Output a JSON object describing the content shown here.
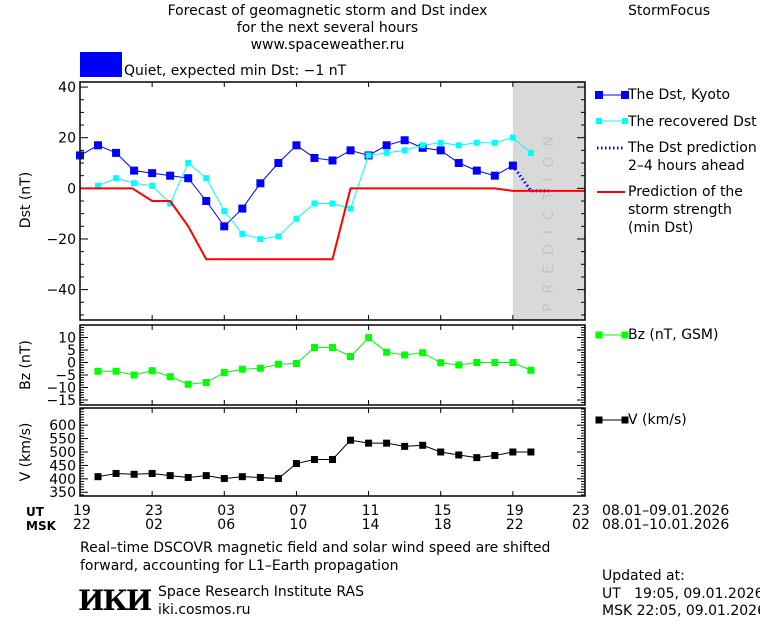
{
  "header": {
    "title_line1": "Forecast of geomagnetic storm and Dst index",
    "title_line2": "for the next several hours",
    "site": "www.spaceweather.ru",
    "brand": "StormFocus",
    "status_color": "#0000ff",
    "status_text": "Quiet, expected min Dst: −1 nT"
  },
  "legend": {
    "dst_kyoto": "The Dst, Kyoto",
    "recovered": "The recovered Dst",
    "prediction_1": "The Dst prediction",
    "prediction_2": "2–4 hours ahead",
    "strength_1": "Prediction of the",
    "strength_2": "storm strength",
    "strength_3": "(min Dst)",
    "bz": "Bz (nT, GSM)",
    "v": "V (km/s)"
  },
  "time_axis": {
    "ut_label": "UT",
    "msk_label": "MSK",
    "ut_ticks": [
      "19",
      "23",
      "03",
      "07",
      "11",
      "15",
      "19",
      "23"
    ],
    "msk_ticks": [
      "22",
      "02",
      "06",
      "10",
      "14",
      "18",
      "22",
      "02"
    ],
    "ut_range": "08.01–09.01.2026",
    "msk_range": "08.01–10.01.2026"
  },
  "footer": {
    "note_1": "Real–time DSCOVR magnetic field and solar wind speed are shifted",
    "note_2": "forward, accounting for L1–Earth propagation",
    "logo": "ИКИ",
    "institute": "Space Research Institute RAS",
    "institute_url": "iki.cosmos.ru",
    "updated_label": "Updated at:",
    "updated_ut": "UT   19:05, 09.01.2026",
    "updated_msk": "MSK 22:05, 09.01.2026"
  },
  "chart_data": [
    {
      "type": "line",
      "name": "dst",
      "ylabel": "Dst (nT)",
      "ylim": [
        -52,
        42
      ],
      "yticks": [
        40,
        20,
        0,
        -20,
        -40
      ],
      "xlim_hours": [
        0,
        28
      ],
      "prediction_zone_label": "PREDICTION",
      "prediction_zone_hours": [
        24,
        28
      ],
      "series": [
        {
          "name": "The Dst, Kyoto",
          "color": "#0000ff",
          "x0": 0,
          "values": [
            13,
            17,
            14,
            7,
            6,
            5,
            4,
            -5,
            -15,
            -8,
            2,
            10,
            17,
            12,
            11,
            15,
            13,
            17,
            19,
            16,
            15,
            10,
            7,
            5,
            9
          ]
        },
        {
          "name": "The recovered Dst",
          "color": "#00ffff",
          "x0": 1,
          "values": [
            1,
            4,
            2,
            1,
            -6,
            10,
            4,
            -9,
            -18,
            -20,
            -19,
            -12,
            -6,
            -6,
            -8,
            13,
            14,
            15,
            17,
            18,
            17,
            18,
            18,
            20,
            14
          ]
        },
        {
          "name": "The Dst prediction 2-4 hours ahead",
          "color": "#0000ff",
          "points": [
            [
              24,
              9
            ],
            [
              24.5,
              4
            ],
            [
              25,
              -1
            ],
            [
              26,
              -1
            ]
          ]
        },
        {
          "name": "Prediction of the storm strength (min Dst)",
          "color": "#ff0000",
          "points": [
            [
              0,
              0
            ],
            [
              2.9,
              0
            ],
            [
              4,
              -5
            ],
            [
              5,
              -5
            ],
            [
              6,
              -15
            ],
            [
              7,
              -28
            ],
            [
              14,
              -28
            ],
            [
              15,
              0
            ],
            [
              23,
              0
            ],
            [
              24,
              -1
            ],
            [
              28,
              -1
            ]
          ]
        }
      ]
    },
    {
      "type": "line",
      "name": "bz",
      "ylabel": "Bz (nT)",
      "ylim": [
        -17,
        15
      ],
      "yticks": [
        10,
        5,
        0,
        -5,
        -10,
        -15
      ],
      "series": [
        {
          "name": "Bz (nT, GSM)",
          "color": "#00ff00",
          "x0": 1,
          "values": [
            -3.5,
            -3.5,
            -5,
            -3.3,
            -5.7,
            -8.7,
            -8,
            -4,
            -2.7,
            -2.3,
            -0.7,
            -0.4,
            6,
            6,
            2.4,
            9.9,
            4.1,
            3,
            3.9,
            -0.1,
            -1,
            0,
            0,
            0,
            -3.1
          ]
        }
      ]
    },
    {
      "type": "line",
      "name": "v",
      "ylabel": "V (km/s)",
      "ylim": [
        336,
        664
      ],
      "yticks": [
        600,
        550,
        500,
        450,
        400,
        350
      ],
      "series": [
        {
          "name": "V (km/s)",
          "color": "#000000",
          "x0": 1,
          "values": [
            408,
            420,
            417,
            420,
            412,
            405,
            412,
            401,
            408,
            405,
            401,
            457,
            472,
            472,
            544,
            533,
            533,
            521,
            525,
            500,
            489,
            479,
            487,
            500,
            500
          ]
        }
      ]
    }
  ]
}
